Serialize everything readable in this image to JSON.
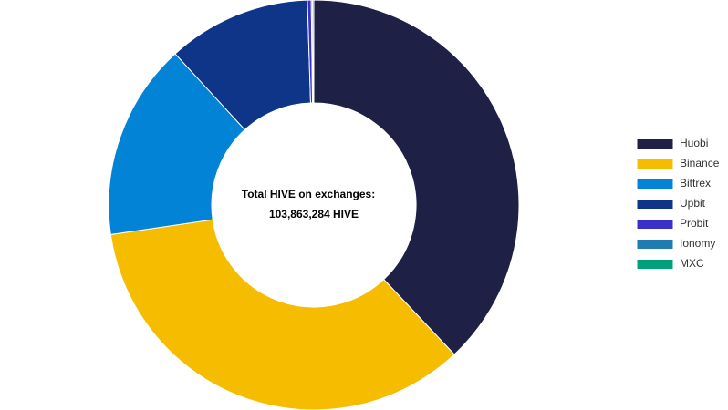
{
  "chart_data": {
    "type": "pie",
    "center_title": "Total HIVE on exchanges:",
    "center_value": "103,863,284 HIVE",
    "categories": [
      "Huobi",
      "Binance",
      "Bittrex",
      "Upbit",
      "Probit",
      "Ionomy",
      "MXC"
    ],
    "values": [
      38.0,
      34.7,
      15.5,
      11.3,
      0.3,
      0.1,
      0.1
    ],
    "colors": [
      "#1f2046",
      "#f5bc00",
      "#0383d5",
      "#0e3587",
      "#3a30c8",
      "#1f7bb0",
      "#00a07a"
    ],
    "legend": "right"
  }
}
